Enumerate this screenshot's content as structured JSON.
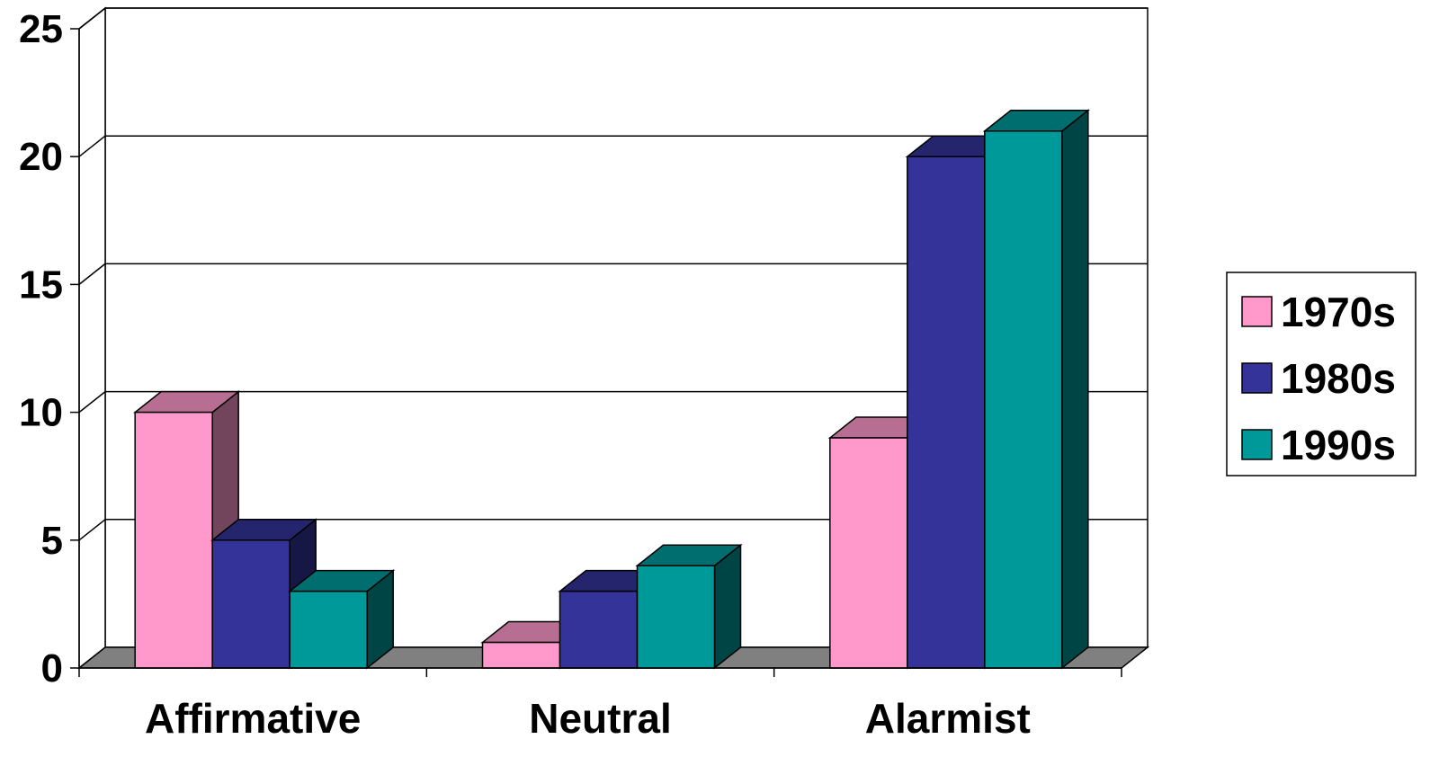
{
  "chart_data": {
    "type": "bar",
    "categories": [
      "Affirmative",
      "Neutral",
      "Alarmist"
    ],
    "series": [
      {
        "name": "1970s",
        "values": [
          10,
          1,
          9
        ],
        "color": "#FF99CC"
      },
      {
        "name": "1980s",
        "values": [
          5,
          3,
          20
        ],
        "color": "#333399"
      },
      {
        "name": "1990s",
        "values": [
          3,
          4,
          21
        ],
        "color": "#009999"
      }
    ],
    "ylim": [
      0,
      25
    ],
    "yticks": [
      "0",
      "5",
      "10",
      "15",
      "20",
      "25"
    ],
    "grid": true,
    "legend_position": "right",
    "style": "3d-clustered-column",
    "floor_color": "#808080"
  }
}
